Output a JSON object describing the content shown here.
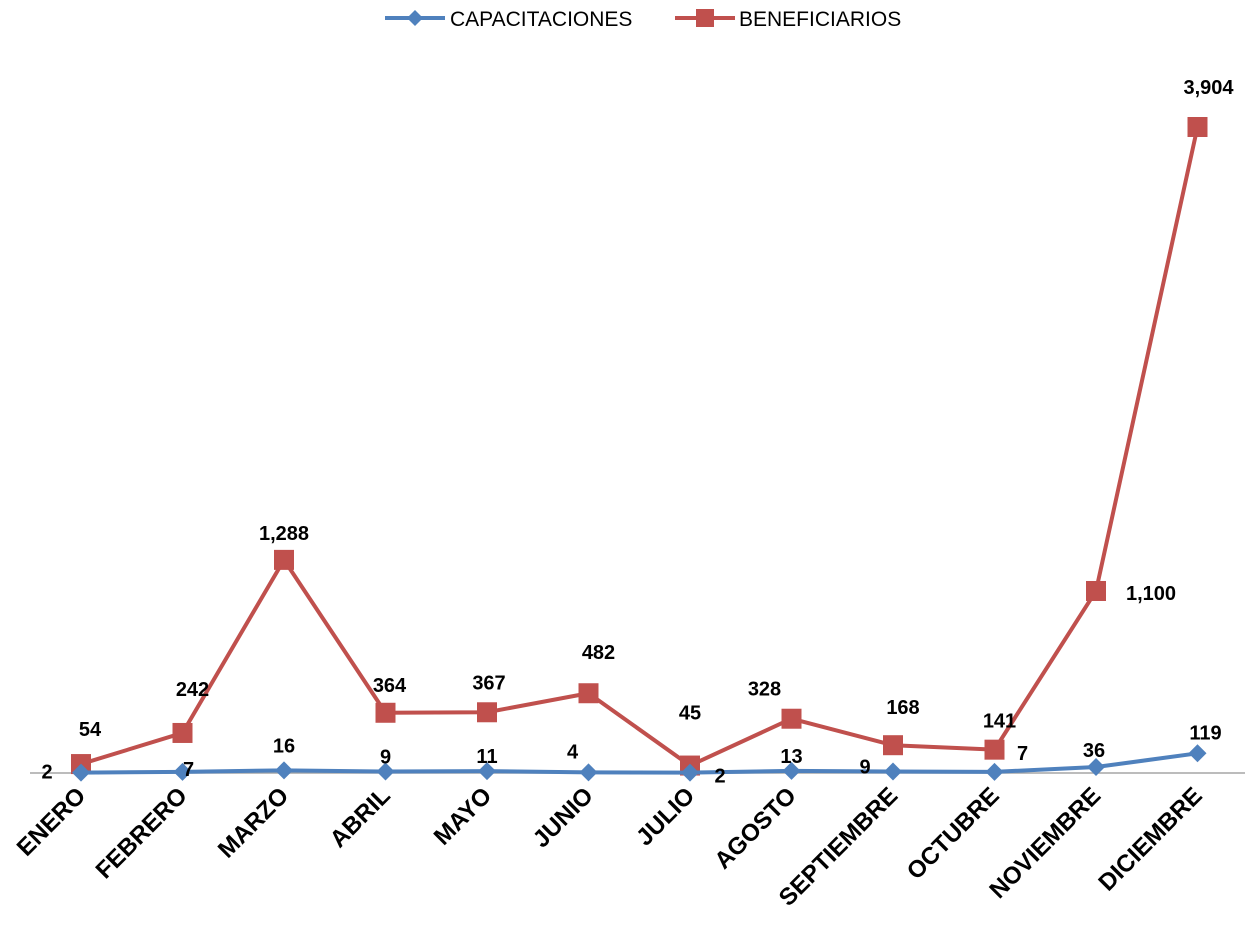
{
  "chart_data": {
    "type": "line",
    "title": "",
    "xlabel": "",
    "ylabel": "",
    "categories": [
      "ENERO",
      "FEBRERO",
      "MARZO",
      "ABRIL",
      "MAYO",
      "JUNIO",
      "JULIO",
      "AGOSTO",
      "SEPTIEMBRE",
      "OCTUBRE",
      "NOVIEMBRE",
      "DICIEMBRE"
    ],
    "series": [
      {
        "name": "CAPACITACIONES",
        "values": [
          2,
          7,
          16,
          9,
          11,
          4,
          2,
          13,
          9,
          7,
          36,
          119
        ],
        "labels": [
          "2",
          "7",
          "16",
          "9",
          "11",
          "4",
          "2",
          "13",
          "9",
          "7",
          "36",
          "119"
        ],
        "color": "#4F81BD",
        "marker": "diamond"
      },
      {
        "name": "BENEFICIARIOS",
        "values": [
          54,
          242,
          1288,
          364,
          367,
          482,
          45,
          328,
          168,
          141,
          1100,
          3904
        ],
        "labels": [
          "54",
          "242",
          "1,288",
          "364",
          "367",
          "482",
          "45",
          "328",
          "168",
          "141",
          "1,100",
          "3,904"
        ],
        "color": "#C0504D",
        "marker": "square"
      }
    ],
    "ylim": [
      0,
      4000
    ],
    "grid": false,
    "legend_position": "top-center",
    "axis_color": "#A6A6A6"
  }
}
